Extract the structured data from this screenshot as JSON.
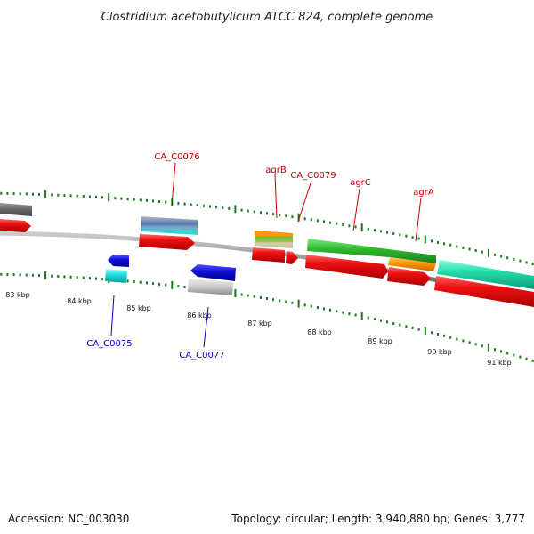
{
  "map": {
    "title": "Clostridium acetobutylicum ATCC 824, complete genome",
    "accession": "Accession: NC_003030",
    "summary": "Topology: circular; Length: 3,940,880 bp; Genes: 3,777"
  },
  "scale": {
    "labels": [
      "83 kbp",
      "84 kbp",
      "85 kbp",
      "86 kbp",
      "87 kbp",
      "88 kbp",
      "89 kbp",
      "90 kbp",
      "91 kbp"
    ]
  },
  "genes": {
    "upper_labels": [
      "CA_C0076",
      "agrB",
      "CA_C0079",
      "agrC",
      "agrA"
    ],
    "lower_labels": [
      "CA_C0075",
      "CA_C0077"
    ]
  },
  "colors": {
    "upper_label": "#cc0000",
    "lower_label": "#0000cc",
    "tick": "#1a7a1a",
    "backbone": "#888888",
    "cds_red": "#ee1111",
    "cds_blue": "#1111dd",
    "cds_cyan": "#22dddd",
    "cds_gray": "#c8c8c8",
    "cds_green": "#33bb33",
    "cds_orange": "#ff9900",
    "cds_mint": "#22ddaa"
  }
}
